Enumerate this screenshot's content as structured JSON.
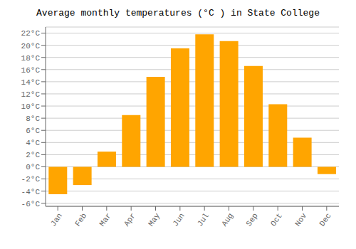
{
  "chart_data": {
    "type": "bar",
    "title": "Average monthly temperatures (°C ) in State College",
    "categories": [
      "Jan",
      "Feb",
      "Mar",
      "Apr",
      "May",
      "Jun",
      "Jul",
      "Aug",
      "Sep",
      "Oct",
      "Nov",
      "Dec"
    ],
    "values": [
      -4.5,
      -3.0,
      2.5,
      8.5,
      14.8,
      19.5,
      21.8,
      20.7,
      16.6,
      10.3,
      4.8,
      -1.2
    ],
    "color": "#FFA500",
    "ylim": [
      -6.5,
      23
    ],
    "yticks": [
      {
        "value": -6,
        "label": "-6°C"
      },
      {
        "value": -4,
        "label": "-4°C"
      },
      {
        "value": -2,
        "label": "-2°C"
      },
      {
        "value": 0,
        "label": "0°C"
      },
      {
        "value": 2,
        "label": "2°C"
      },
      {
        "value": 4,
        "label": "4°C"
      },
      {
        "value": 6,
        "label": "6°C"
      },
      {
        "value": 8,
        "label": "8°C"
      },
      {
        "value": 10,
        "label": "10°C"
      },
      {
        "value": 12,
        "label": "12°C"
      },
      {
        "value": 14,
        "label": "14°C"
      },
      {
        "value": 16,
        "label": "16°C"
      },
      {
        "value": 18,
        "label": "18°C"
      },
      {
        "value": 20,
        "label": "20°C"
      },
      {
        "value": 22,
        "label": "22°C"
      }
    ],
    "grid": true
  }
}
